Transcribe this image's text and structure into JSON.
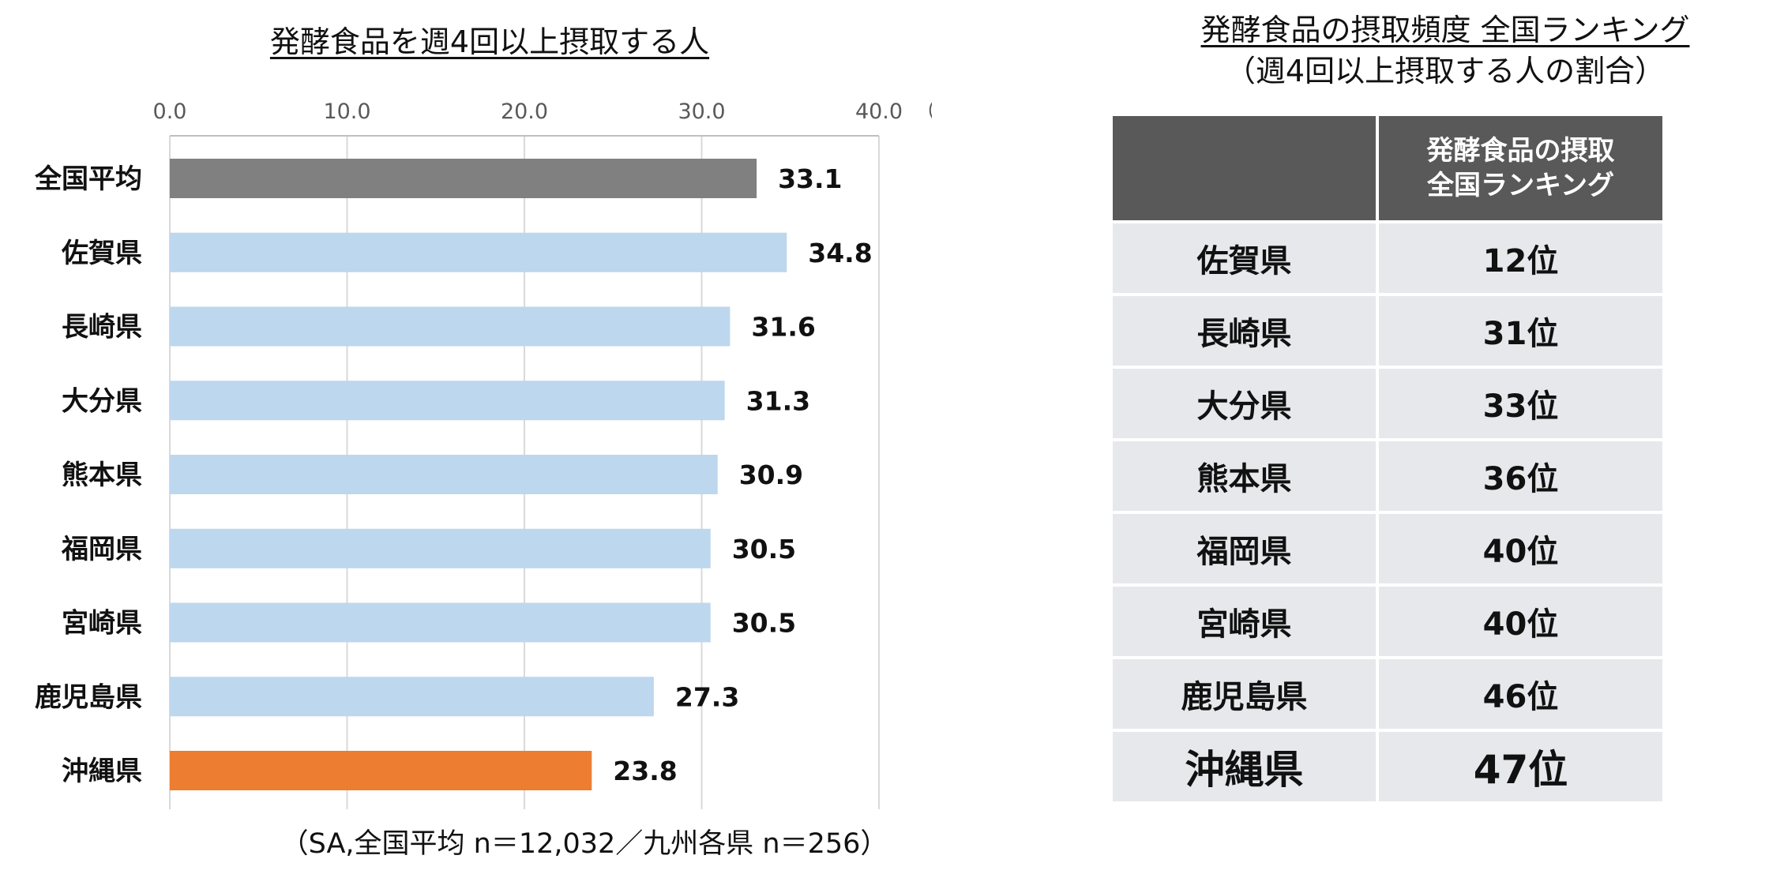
{
  "chart_data": {
    "type": "bar",
    "orientation": "horizontal",
    "title": "発酵食品を週4回以上摂取する人",
    "unit_label": "（%）",
    "categories": [
      "全国平均",
      "佐賀県",
      "長崎県",
      "大分県",
      "熊本県",
      "福岡県",
      "宮崎県",
      "鹿児島県",
      "沖縄県"
    ],
    "values": [
      33.1,
      34.8,
      31.6,
      31.3,
      30.9,
      30.5,
      30.5,
      27.3,
      23.8
    ],
    "value_labels": [
      "33.1",
      "34.8",
      "31.6",
      "31.3",
      "30.9",
      "30.5",
      "30.5",
      "27.3",
      "23.8"
    ],
    "xlim": [
      0,
      40
    ],
    "xticks": [
      "0.0",
      "10.0",
      "20.0",
      "30.0",
      "40.0"
    ],
    "grid": true,
    "bar_colors": [
      "#808080",
      "#bdd7ee",
      "#bdd7ee",
      "#bdd7ee",
      "#bdd7ee",
      "#bdd7ee",
      "#bdd7ee",
      "#bdd7ee",
      "#ed7d31"
    ],
    "footnote": "（SA,全国平均 n＝12,032／九州各県 n＝256）"
  },
  "ranking": {
    "title_line1": "発酵食品の摂取頻度 全国ランキング",
    "title_line2": "（週4回以上摂取する人の割合）",
    "header_col2_line1": "発酵食品の摂取",
    "header_col2_line2": "全国ランキング",
    "rows": [
      {
        "pref": "佐賀県",
        "rank": "12位"
      },
      {
        "pref": "長崎県",
        "rank": "31位"
      },
      {
        "pref": "大分県",
        "rank": "33位"
      },
      {
        "pref": "熊本県",
        "rank": "36位"
      },
      {
        "pref": "福岡県",
        "rank": "40位"
      },
      {
        "pref": "宮崎県",
        "rank": "40位"
      },
      {
        "pref": "鹿児島県",
        "rank": "46位"
      },
      {
        "pref": "沖縄県",
        "rank": "47位"
      }
    ]
  },
  "colors": {
    "header_bg": "#595959",
    "cell_bg": "#e7e8ec",
    "grid": "#d9d9d9"
  }
}
